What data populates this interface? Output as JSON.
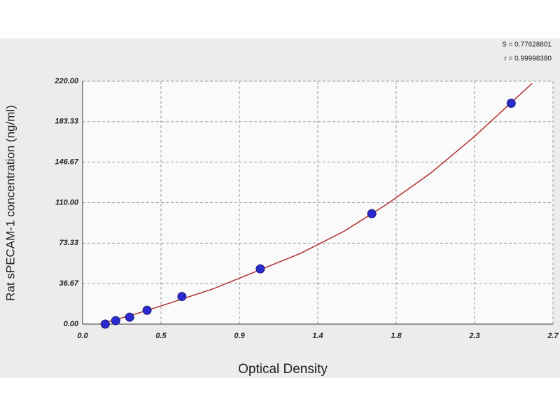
{
  "chart_data": {
    "type": "scatter",
    "x_label": "Optical Density",
    "y_label": "Rat sPECAM-1 concentration (ng/ml)",
    "annotations": [
      "S = 0.77628801",
      "r = 0.99998380"
    ],
    "xlim": [
      0,
      2.7
    ],
    "xticks": [
      {
        "value": 0,
        "label": "0.0"
      },
      {
        "value": 0.45,
        "label": "0.5"
      },
      {
        "value": 0.9,
        "label": "0.9"
      },
      {
        "value": 1.35,
        "label": "1.4"
      },
      {
        "value": 1.8,
        "label": "1.8"
      },
      {
        "value": 2.25,
        "label": "2.3"
      },
      {
        "value": 2.7,
        "label": "2.7"
      }
    ],
    "ylim": [
      0,
      220
    ],
    "yticks": [
      {
        "value": 0,
        "label": "0.00"
      },
      {
        "value": 36.67,
        "label": "36.67"
      },
      {
        "value": 73.33,
        "label": "73.33"
      },
      {
        "value": 110,
        "label": "110.00"
      },
      {
        "value": 146.67,
        "label": "146.67"
      },
      {
        "value": 183.33,
        "label": "183.33"
      },
      {
        "value": 220,
        "label": "220.00"
      }
    ],
    "grid": true,
    "series": [
      {
        "kind": "points",
        "color": "#2a2ad0",
        "x": [
          0.13,
          0.19,
          0.27,
          0.37,
          0.57,
          1.02,
          1.66,
          2.46
        ],
        "values": [
          0,
          3.125,
          6.25,
          12.5,
          25,
          50,
          100,
          200
        ]
      },
      {
        "kind": "curve",
        "color": "#b03030",
        "x": [
          0.1,
          0.3,
          0.5,
          0.75,
          1.0,
          1.25,
          1.5,
          1.75,
          2.0,
          2.25,
          2.58
        ],
        "values": [
          0,
          9,
          19,
          32,
          48,
          64,
          84,
          109,
          137,
          170,
          218
        ]
      }
    ]
  }
}
